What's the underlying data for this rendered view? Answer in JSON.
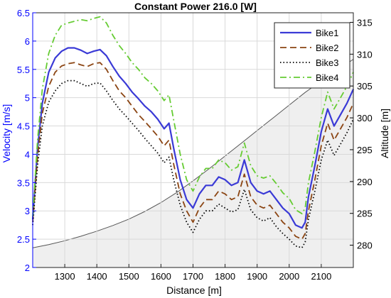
{
  "chart_data": {
    "type": "line",
    "title": "Constant Power 216.0 [W]",
    "xlabel": "Distance [m]",
    "ylabel_left": "Velocity [m/s]",
    "ylabel_right": "Altitude [m]",
    "xlim": [
      1200,
      2200
    ],
    "ylim_left": [
      2,
      6.5
    ],
    "ylim_right": [
      276.5,
      316.5
    ],
    "x_ticks": [
      1300,
      1400,
      1500,
      1600,
      1700,
      1800,
      1900,
      2000,
      2100
    ],
    "y_left_ticks": [
      2,
      2.5,
      3,
      3.5,
      4,
      4.5,
      5,
      5.5,
      6,
      6.5
    ],
    "y_right_ticks": [
      280,
      285,
      290,
      295,
      300,
      305,
      310,
      315
    ],
    "grid": true,
    "legend_position": "top-right",
    "colors": {
      "left_axis": "#0000ff",
      "right_axis": "#000000",
      "altitude_fill": "#efefef",
      "altitude_line": "#555555",
      "grid": "#d9d9d9"
    },
    "series": [
      {
        "name": "Bike1",
        "axis": "left",
        "color": "#3a3ad6",
        "dash": "solid",
        "x": [
          1200,
          1215,
          1230,
          1250,
          1270,
          1290,
          1310,
          1330,
          1350,
          1370,
          1390,
          1410,
          1430,
          1450,
          1470,
          1490,
          1510,
          1530,
          1550,
          1570,
          1590,
          1610,
          1625,
          1640,
          1660,
          1680,
          1700,
          1720,
          1740,
          1760,
          1780,
          1800,
          1820,
          1840,
          1860,
          1880,
          1900,
          1920,
          1940,
          1960,
          1980,
          2000,
          2020,
          2040,
          2050,
          2060,
          2080,
          2100,
          2120,
          2140,
          2160,
          2180,
          2200
        ],
        "y": [
          2.85,
          4.1,
          4.9,
          5.45,
          5.7,
          5.82,
          5.88,
          5.88,
          5.84,
          5.78,
          5.82,
          5.85,
          5.74,
          5.55,
          5.38,
          5.25,
          5.1,
          4.98,
          4.85,
          4.75,
          4.62,
          4.45,
          4.55,
          4.1,
          3.55,
          3.2,
          3.05,
          3.3,
          3.45,
          3.45,
          3.6,
          3.55,
          3.45,
          3.5,
          3.9,
          3.5,
          3.35,
          3.3,
          3.35,
          3.2,
          3.05,
          2.95,
          2.75,
          2.7,
          2.8,
          3.25,
          3.8,
          4.4,
          4.8,
          4.5,
          4.7,
          4.9,
          5.15
        ]
      },
      {
        "name": "Bike2",
        "axis": "left",
        "color": "#8b4513",
        "dash": "dashed",
        "x": [
          1200,
          1215,
          1230,
          1250,
          1270,
          1290,
          1310,
          1330,
          1350,
          1370,
          1390,
          1410,
          1430,
          1450,
          1470,
          1490,
          1510,
          1530,
          1550,
          1570,
          1590,
          1610,
          1625,
          1640,
          1660,
          1680,
          1700,
          1720,
          1740,
          1760,
          1780,
          1800,
          1820,
          1840,
          1860,
          1880,
          1900,
          1920,
          1940,
          1960,
          1980,
          2000,
          2020,
          2040,
          2050,
          2060,
          2080,
          2100,
          2120,
          2140,
          2160,
          2180,
          2200
        ],
        "y": [
          2.8,
          3.95,
          4.72,
          5.2,
          5.45,
          5.56,
          5.6,
          5.62,
          5.58,
          5.55,
          5.6,
          5.62,
          5.5,
          5.3,
          5.12,
          5.0,
          4.85,
          4.7,
          4.58,
          4.45,
          4.32,
          4.15,
          4.25,
          3.82,
          3.3,
          3.0,
          2.8,
          3.05,
          3.2,
          3.2,
          3.35,
          3.3,
          3.2,
          3.25,
          3.65,
          3.25,
          3.1,
          3.05,
          3.1,
          2.95,
          2.8,
          2.7,
          2.55,
          2.5,
          2.6,
          3.0,
          3.55,
          4.15,
          4.55,
          4.25,
          4.45,
          4.65,
          4.9
        ]
      },
      {
        "name": "Bike3",
        "axis": "left",
        "color": "#000000",
        "dash": "dotted",
        "x": [
          1200,
          1215,
          1230,
          1250,
          1270,
          1290,
          1310,
          1330,
          1350,
          1370,
          1390,
          1410,
          1430,
          1450,
          1470,
          1490,
          1510,
          1530,
          1550,
          1570,
          1590,
          1610,
          1625,
          1640,
          1660,
          1680,
          1700,
          1720,
          1740,
          1760,
          1780,
          1800,
          1820,
          1840,
          1860,
          1880,
          1900,
          1920,
          1940,
          1960,
          1980,
          2000,
          2020,
          2040,
          2050,
          2060,
          2080,
          2100,
          2120,
          2140,
          2160,
          2180,
          2200
        ],
        "y": [
          2.75,
          3.8,
          4.5,
          4.92,
          5.12,
          5.25,
          5.3,
          5.3,
          5.25,
          5.2,
          5.25,
          5.26,
          5.12,
          4.95,
          4.8,
          4.68,
          4.55,
          4.42,
          4.28,
          4.15,
          4.02,
          3.85,
          3.95,
          3.55,
          3.1,
          2.8,
          2.62,
          2.85,
          3.0,
          3.0,
          3.12,
          3.05,
          2.98,
          3.02,
          3.38,
          3.02,
          2.88,
          2.82,
          2.88,
          2.72,
          2.6,
          2.5,
          2.38,
          2.35,
          2.45,
          2.85,
          3.35,
          3.9,
          4.25,
          3.98,
          4.18,
          4.38,
          4.62
        ]
      },
      {
        "name": "Bike4",
        "axis": "left",
        "color": "#66cc33",
        "dash": "dashdot",
        "x": [
          1200,
          1215,
          1230,
          1250,
          1270,
          1290,
          1310,
          1330,
          1350,
          1370,
          1390,
          1410,
          1430,
          1450,
          1470,
          1490,
          1510,
          1530,
          1550,
          1570,
          1590,
          1610,
          1625,
          1640,
          1660,
          1680,
          1700,
          1720,
          1740,
          1760,
          1780,
          1800,
          1820,
          1840,
          1860,
          1880,
          1900,
          1920,
          1940,
          1960,
          1980,
          2000,
          2020,
          2040,
          2050,
          2060,
          2080,
          2100,
          2120,
          2140,
          2160,
          2180,
          2200
        ],
        "y": [
          2.9,
          4.25,
          5.15,
          5.78,
          6.1,
          6.28,
          6.32,
          6.35,
          6.38,
          6.36,
          6.4,
          6.43,
          6.32,
          6.1,
          5.92,
          5.78,
          5.62,
          5.5,
          5.35,
          5.25,
          5.12,
          4.95,
          5.05,
          4.6,
          4.0,
          3.55,
          3.35,
          3.6,
          3.75,
          3.75,
          3.9,
          3.85,
          3.72,
          3.78,
          4.2,
          3.8,
          3.62,
          3.58,
          3.62,
          3.48,
          3.32,
          3.22,
          3.02,
          2.95,
          3.05,
          3.5,
          4.05,
          4.65,
          5.1,
          4.8,
          5.0,
          5.2,
          5.45
        ]
      },
      {
        "name": "Altitude",
        "axis": "right",
        "color": "#555555",
        "dash": "solid",
        "filled": true,
        "x": [
          1200,
          1250,
          1300,
          1350,
          1400,
          1450,
          1500,
          1550,
          1600,
          1650,
          1700,
          1750,
          1800,
          1850,
          1900,
          1950,
          2000,
          2050,
          2100,
          2150,
          2200
        ],
        "y": [
          279.6,
          280.1,
          280.7,
          281.4,
          282.2,
          283.1,
          284.1,
          285.3,
          286.7,
          288.3,
          290.1,
          292.0,
          294.0,
          296.0,
          298.0,
          300.0,
          302.0,
          304.0,
          305.8,
          307.5,
          309.2
        ]
      }
    ]
  }
}
